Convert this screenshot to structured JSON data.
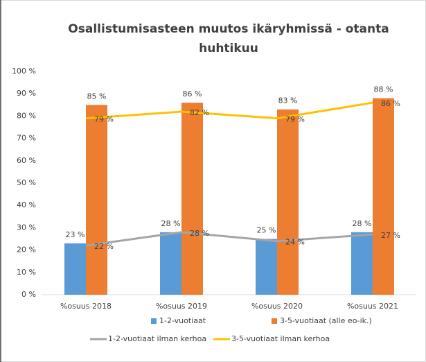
{
  "chart_data": {
    "type": "bar",
    "title": [
      "Osallistumisasteen muutos ikäryhmissä - otanta",
      "huhtikuu"
    ],
    "categories": [
      "%osuus 2018",
      "%osuus 2019",
      "%osuus 2020",
      "%osuus 2021"
    ],
    "series": [
      {
        "name": "1-2-vuotiaat",
        "type": "bar",
        "color": "#5b9bd5",
        "values": [
          23,
          28,
          25,
          28
        ],
        "value_labels": [
          "23 %",
          "28 %",
          "25 %",
          "28 %"
        ]
      },
      {
        "name": "3-5-vuotiaat (alle eo-ik.)",
        "type": "bar",
        "color": "#ed7d31",
        "values": [
          85,
          86,
          83,
          88
        ],
        "value_labels": [
          "85 %",
          "86 %",
          "83 %",
          "88 %"
        ]
      },
      {
        "name": "1-2-vuotiaat ilman kerhoa",
        "type": "line",
        "color": "#a5a5a5",
        "values": [
          22,
          28,
          24,
          27
        ],
        "value_labels": [
          "22 %",
          "28 %",
          "24 %",
          "27 %"
        ]
      },
      {
        "name": "3-5-vuotiaat ilman kerhoa",
        "type": "line",
        "color": "#ffc000",
        "values": [
          79,
          82,
          79,
          86
        ],
        "value_labels": [
          "79 %",
          "82 %",
          "79 %",
          "86 %"
        ]
      }
    ],
    "ylim": [
      0,
      100
    ],
    "yticks": [
      {
        "value": 0,
        "label": "0 %"
      },
      {
        "value": 10,
        "label": "10 %"
      },
      {
        "value": 20,
        "label": "20 %"
      },
      {
        "value": 30,
        "label": "30 %"
      },
      {
        "value": 40,
        "label": "40 %"
      },
      {
        "value": 50,
        "label": "50 %"
      },
      {
        "value": 60,
        "label": "60 %"
      },
      {
        "value": 70,
        "label": "70 %"
      },
      {
        "value": 80,
        "label": "80 %"
      },
      {
        "value": 90,
        "label": "90 %"
      },
      {
        "value": 100,
        "label": "100 %"
      }
    ],
    "grid": false
  }
}
